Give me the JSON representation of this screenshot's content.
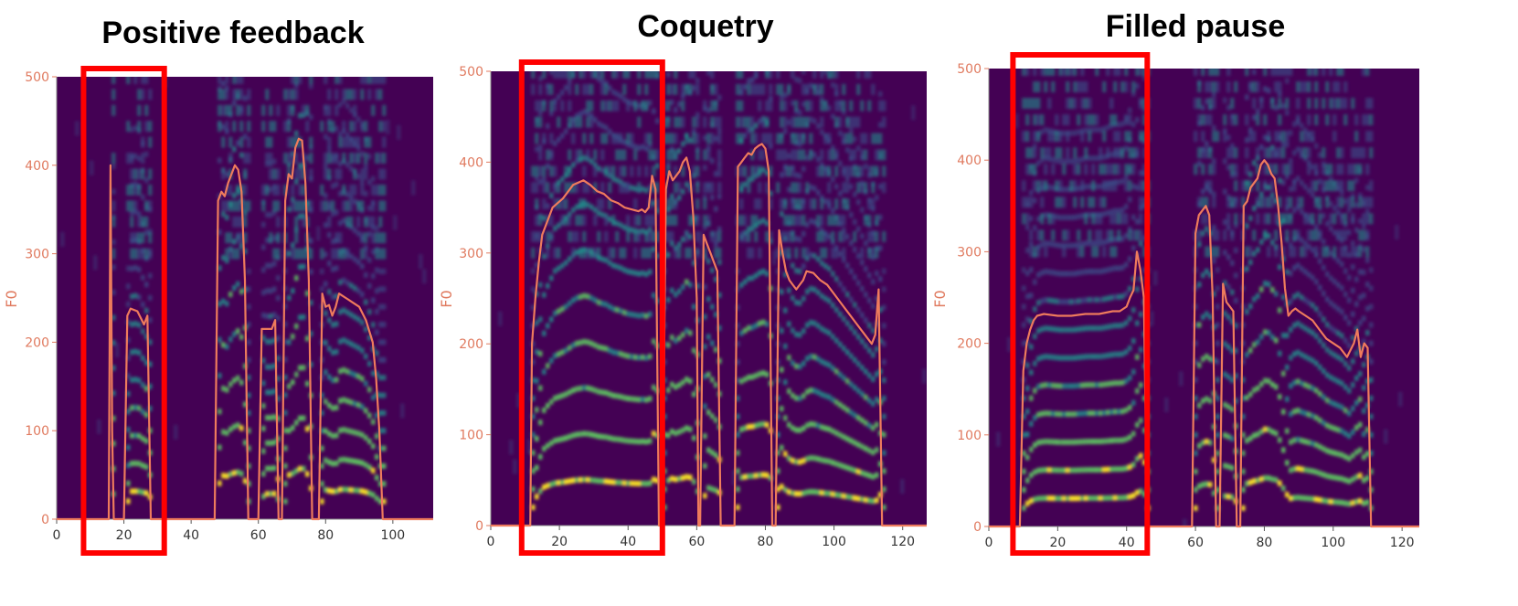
{
  "colors": {
    "background": "#440154",
    "f0_line": "#ee7b5c",
    "highlight_box": "#ff0000",
    "y_tick_text": "#e07a5f",
    "harmonic_colormap": [
      "#440154",
      "#3b528b",
      "#21918c",
      "#5ec962",
      "#fde725"
    ]
  },
  "chart_data": [
    {
      "type": "line",
      "title": "Positive feedback",
      "ylabel": "F0",
      "xlim": [
        0,
        112
      ],
      "ylim": [
        0,
        500
      ],
      "xticks": [
        0,
        20,
        40,
        60,
        80,
        100
      ],
      "yticks": [
        0,
        100,
        200,
        300,
        400,
        500
      ],
      "highlight_x": [
        8,
        32
      ],
      "series": [
        {
          "x": [
            0,
            15.5,
            16,
            16.5,
            17,
            20,
            21,
            22,
            24,
            26,
            27,
            28,
            47,
            48,
            49,
            50,
            51,
            52,
            53,
            54,
            55,
            56,
            57,
            58,
            60,
            61,
            62,
            64,
            65,
            66,
            67,
            68,
            69,
            70,
            71,
            72,
            73,
            74,
            75,
            76,
            77,
            78,
            79,
            80,
            81,
            82,
            83,
            84,
            86,
            88,
            90,
            92,
            94,
            95,
            96,
            97,
            112
          ],
          "y": [
            0,
            0,
            400,
            100,
            0,
            0,
            230,
            238,
            235,
            220,
            230,
            0,
            0,
            360,
            370,
            365,
            380,
            390,
            400,
            395,
            370,
            270,
            0,
            0,
            0,
            215,
            215,
            215,
            225,
            0,
            0,
            360,
            390,
            385,
            420,
            430,
            428,
            380,
            270,
            0,
            0,
            0,
            255,
            240,
            242,
            230,
            240,
            255,
            250,
            245,
            240,
            225,
            200,
            160,
            100,
            0,
            0
          ]
        }
      ]
    },
    {
      "type": "line",
      "title": "Coquetry",
      "ylabel": "F0",
      "xlim": [
        0,
        127
      ],
      "ylim": [
        0,
        500
      ],
      "xticks": [
        0,
        20,
        40,
        60,
        80,
        100,
        120
      ],
      "yticks": [
        0,
        100,
        200,
        300,
        400,
        500
      ],
      "highlight_x": [
        9,
        50
      ],
      "series": [
        {
          "x": [
            0,
            11.5,
            12,
            13,
            14,
            15,
            18,
            21,
            24,
            27,
            29,
            31,
            33,
            35,
            37,
            39,
            41,
            43,
            44,
            45,
            46,
            47,
            48,
            49,
            50,
            51,
            52,
            53,
            54,
            55,
            56,
            57,
            58,
            59,
            60,
            60.5,
            61,
            62,
            63,
            64,
            65,
            66,
            67,
            68,
            69,
            70,
            71,
            72,
            73,
            74,
            75,
            76,
            77,
            78,
            79,
            80,
            81,
            82,
            83,
            84,
            85,
            86,
            87,
            88,
            89,
            90,
            91,
            92,
            94,
            96,
            98,
            100,
            102,
            104,
            106,
            108,
            110,
            111,
            112,
            113,
            114,
            115,
            127
          ],
          "y": [
            0,
            0,
            200,
            250,
            290,
            320,
            350,
            360,
            375,
            380,
            375,
            368,
            365,
            358,
            355,
            350,
            348,
            346,
            348,
            345,
            350,
            385,
            370,
            0,
            0,
            370,
            390,
            380,
            385,
            390,
            400,
            405,
            390,
            340,
            250,
            0,
            0,
            320,
            310,
            300,
            290,
            280,
            0,
            0,
            0,
            0,
            0,
            395,
            400,
            405,
            410,
            408,
            415,
            418,
            420,
            415,
            390,
            0,
            0,
            325,
            300,
            280,
            270,
            265,
            260,
            265,
            270,
            280,
            278,
            270,
            265,
            255,
            245,
            235,
            225,
            215,
            205,
            200,
            210,
            260,
            0,
            0,
            0
          ]
        }
      ]
    },
    {
      "type": "line",
      "title": "Filled pause",
      "ylabel": "F0",
      "xlim": [
        0,
        125
      ],
      "ylim": [
        0,
        500
      ],
      "xticks": [
        0,
        20,
        40,
        60,
        80,
        100,
        120
      ],
      "yticks": [
        0,
        100,
        200,
        300,
        400,
        500
      ],
      "highlight_x": [
        7,
        46
      ],
      "series": [
        {
          "x": [
            0,
            9,
            10,
            11,
            12,
            13,
            14,
            16,
            20,
            24,
            28,
            32,
            36,
            38,
            40,
            41,
            42,
            43,
            44,
            45,
            46,
            59,
            60,
            61,
            62,
            63,
            64,
            65,
            66,
            67,
            68,
            69,
            70,
            71,
            72,
            73,
            74,
            75,
            76,
            77,
            78,
            79,
            80,
            81,
            82,
            83,
            84,
            85,
            86,
            87,
            88,
            89,
            90,
            92,
            94,
            96,
            98,
            100,
            102,
            104,
            106,
            107,
            108,
            109,
            110,
            111,
            112,
            125
          ],
          "y": [
            0,
            0,
            170,
            200,
            215,
            225,
            230,
            232,
            230,
            230,
            232,
            232,
            235,
            235,
            240,
            250,
            258,
            300,
            280,
            250,
            0,
            0,
            320,
            340,
            345,
            350,
            340,
            250,
            0,
            0,
            265,
            245,
            240,
            235,
            0,
            0,
            350,
            355,
            370,
            375,
            380,
            395,
            400,
            395,
            385,
            380,
            350,
            310,
            260,
            230,
            235,
            238,
            235,
            230,
            225,
            215,
            205,
            200,
            195,
            185,
            200,
            215,
            185,
            200,
            195,
            0,
            0,
            0
          ]
        }
      ]
    }
  ]
}
